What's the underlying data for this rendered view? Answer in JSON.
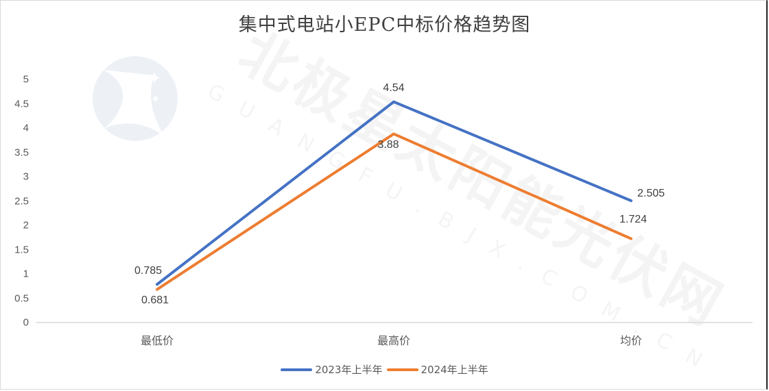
{
  "chart_data": {
    "type": "line",
    "title": "集中式电站小EPC中标价格趋势图",
    "xlabel": "",
    "ylabel": "",
    "categories": [
      "最低价",
      "最高价",
      "均价"
    ],
    "series": [
      {
        "name": "2023年上半年",
        "color": "#4472C4",
        "values": [
          0.785,
          4.54,
          2.505
        ],
        "labels": [
          "0.785",
          "4.54",
          "2.505"
        ]
      },
      {
        "name": "2024年上半年",
        "color": "#ED7D31",
        "values": [
          0.681,
          3.88,
          1.724
        ],
        "labels": [
          "0.681",
          "3.88",
          "1.724"
        ]
      }
    ],
    "ylim": [
      0,
      5
    ],
    "yticks": [
      "0",
      "0.5",
      "1",
      "1.5",
      "2",
      "2.5",
      "3",
      "3.5",
      "4",
      "4.5",
      "5"
    ],
    "grid": false,
    "legend_position": "bottom"
  },
  "watermark": {
    "text": "北极星太阳能光伏网",
    "subtext": "GUANGFU.BJX.COM.CN"
  }
}
